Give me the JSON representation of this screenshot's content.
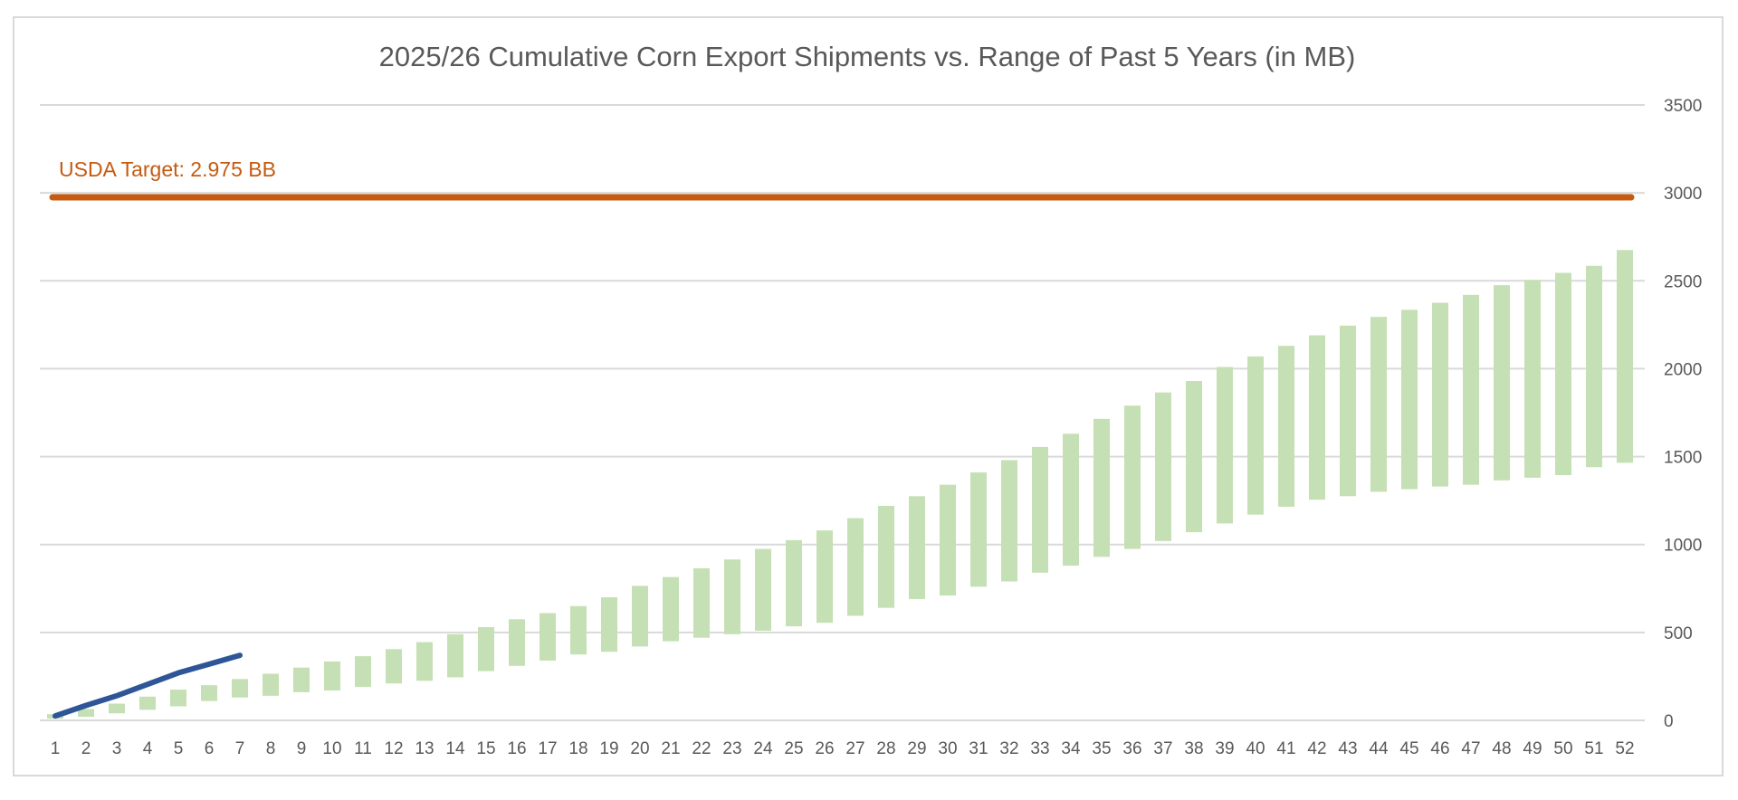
{
  "chart_data": {
    "type": "bar",
    "title": "2025/26 Cumulative Corn Export Shipments vs. Range of Past 5 Years (in MB)",
    "xlabel": "",
    "ylabel": "",
    "y_axis_position": "right",
    "ylim": [
      0,
      3500
    ],
    "y_ticks": [
      0,
      500,
      1000,
      1500,
      2000,
      2500,
      3000,
      3500
    ],
    "grid": true,
    "legend": "none",
    "categories": [
      "1",
      "2",
      "3",
      "4",
      "5",
      "6",
      "7",
      "8",
      "9",
      "10",
      "11",
      "12",
      "13",
      "14",
      "15",
      "16",
      "17",
      "18",
      "19",
      "20",
      "21",
      "22",
      "23",
      "24",
      "25",
      "26",
      "27",
      "28",
      "29",
      "30",
      "31",
      "32",
      "33",
      "34",
      "35",
      "36",
      "37",
      "38",
      "39",
      "40",
      "41",
      "42",
      "43",
      "44",
      "45",
      "46",
      "47",
      "48",
      "49",
      "50",
      "51",
      "52"
    ],
    "range_low": [
      10,
      20,
      40,
      60,
      80,
      110,
      130,
      140,
      160,
      170,
      190,
      210,
      225,
      245,
      280,
      310,
      340,
      375,
      390,
      420,
      450,
      470,
      490,
      510,
      535,
      555,
      595,
      640,
      690,
      710,
      760,
      790,
      840,
      880,
      930,
      975,
      1020,
      1070,
      1120,
      1170,
      1215,
      1255,
      1275,
      1300,
      1315,
      1330,
      1340,
      1365,
      1380,
      1395,
      1440,
      1465
    ],
    "range_high": [
      35,
      65,
      95,
      135,
      175,
      200,
      235,
      265,
      300,
      335,
      365,
      405,
      445,
      490,
      530,
      575,
      610,
      650,
      700,
      765,
      815,
      865,
      915,
      975,
      1025,
      1080,
      1150,
      1220,
      1275,
      1340,
      1410,
      1480,
      1555,
      1630,
      1715,
      1790,
      1865,
      1930,
      2010,
      2070,
      2130,
      2190,
      2245,
      2295,
      2335,
      2375,
      2420,
      2475,
      2505,
      2545,
      2585,
      2675
    ],
    "current_series": {
      "x": [
        "1",
        "2",
        "3",
        "4",
        "5",
        "6",
        "7"
      ],
      "values": [
        25,
        85,
        140,
        205,
        270,
        320,
        370
      ],
      "color": "#2e5597"
    },
    "reference_line": {
      "value": 2975,
      "label": "USDA Target: 2.975 BB",
      "color": "#c55a11"
    },
    "colors": {
      "range_bar": "#c5e0b4",
      "gridline": "#d9d9d9",
      "text": "#595959"
    }
  }
}
